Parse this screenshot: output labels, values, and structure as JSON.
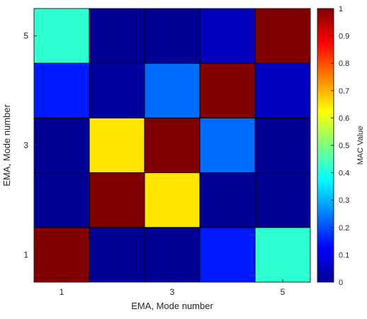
{
  "chart_data": {
    "type": "heatmap",
    "xlabel": "EMA, Mode number",
    "ylabel": "EMA, Mode number",
    "colorbar_label": "MAC Value",
    "colormap": "jet",
    "clim": [
      0,
      1
    ],
    "x_ticks": [
      "1",
      "3",
      "5"
    ],
    "y_ticks": [
      "1",
      "3",
      "5"
    ],
    "colorbar_ticks": [
      "0",
      "0.1",
      "0.2",
      "0.3",
      "0.4",
      "0.5",
      "0.6",
      "0.7",
      "0.8",
      "0.9",
      "1"
    ],
    "x": [
      1,
      2,
      3,
      4,
      5
    ],
    "y": [
      1,
      2,
      3,
      4,
      5
    ],
    "matrix": [
      [
        1.0,
        0.02,
        0.02,
        0.15,
        0.42
      ],
      [
        0.02,
        1.0,
        0.65,
        0.03,
        0.02
      ],
      [
        0.02,
        0.65,
        1.0,
        0.23,
        0.02
      ],
      [
        0.15,
        0.02,
        0.23,
        1.0,
        0.06
      ],
      [
        0.42,
        0.02,
        0.02,
        0.06,
        1.0
      ]
    ]
  }
}
